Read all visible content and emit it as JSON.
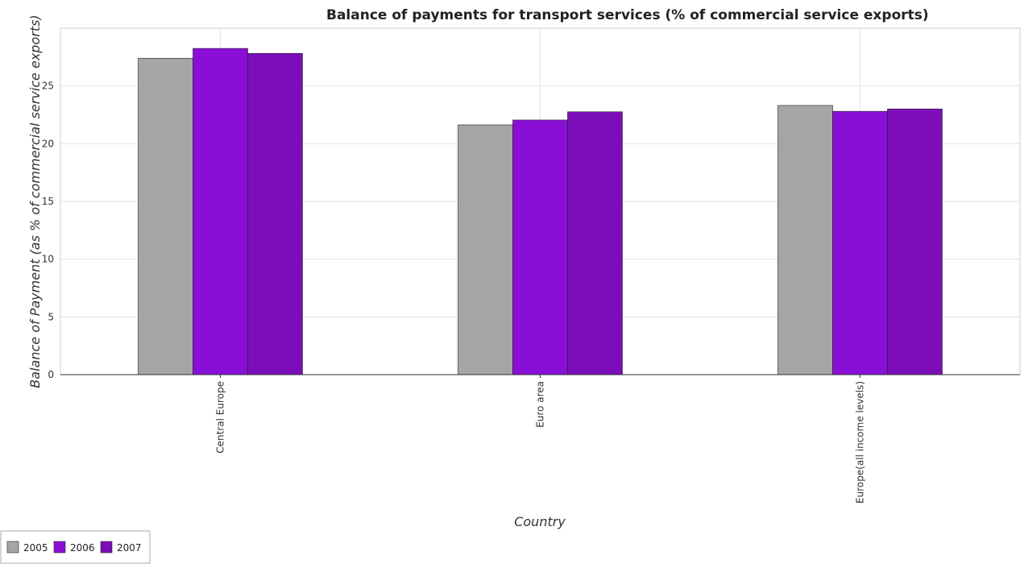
{
  "chart_data": {
    "type": "bar",
    "title": "Balance of payments for transport services (% of commercial service exports)",
    "xlabel": "Country",
    "ylabel": "Balance of Payment (as % of commercial service exports)",
    "categories": [
      "Central Europe",
      "Euro area",
      "Europe(all income levels)"
    ],
    "series": [
      {
        "name": "2005",
        "color": "#a5a5a5",
        "values": [
          27.4,
          21.63,
          23.31
        ]
      },
      {
        "name": "2006",
        "color": "#8a0fd6",
        "values": [
          28.25,
          22.05,
          22.8
        ]
      },
      {
        "name": "2007",
        "color": "#7b0eb9",
        "values": [
          27.82,
          22.76,
          23.01
        ]
      }
    ],
    "ylim": [
      0,
      30
    ],
    "yticks": [
      0,
      5,
      10,
      15,
      20,
      25
    ],
    "grid": true,
    "legend_position": "bottom-left"
  }
}
